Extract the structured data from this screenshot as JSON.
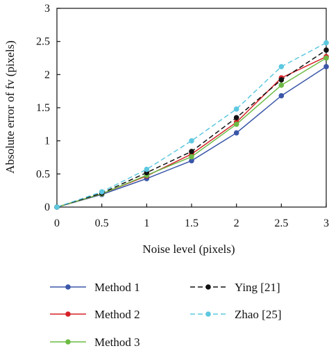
{
  "chart_data": {
    "type": "line",
    "xlabel": "Noise level (pixels)",
    "ylabel": "Absolute error of fv (pixels)",
    "xlim": [
      0,
      3
    ],
    "ylim": [
      0,
      3
    ],
    "x": [
      0,
      0.5,
      1,
      1.5,
      2,
      2.5,
      3
    ],
    "x_tick_labels": [
      "0",
      "0.5",
      "1",
      "1.5",
      "2",
      "2.5",
      "3"
    ],
    "y_tick_labels": [
      "0",
      "0.5",
      "1",
      "1.5",
      "2",
      "2.5",
      "3"
    ],
    "grid": false,
    "legend_position": "bottom",
    "series": [
      {
        "name": "Method 1",
        "color": "#3a56a8",
        "dash": "solid",
        "values": [
          0,
          0.19,
          0.43,
          0.7,
          1.12,
          1.68,
          2.12
        ]
      },
      {
        "name": "Method 2",
        "color": "#d62027",
        "dash": "solid",
        "values": [
          0,
          0.2,
          0.47,
          0.8,
          1.28,
          1.95,
          2.27
        ]
      },
      {
        "name": "Method 3",
        "color": "#6dbb45",
        "dash": "solid",
        "values": [
          0,
          0.2,
          0.48,
          0.76,
          1.25,
          1.84,
          2.25
        ]
      },
      {
        "name": "Ying [21]",
        "color": "#111111",
        "dash": "dashed",
        "values": [
          0,
          0.21,
          0.52,
          0.84,
          1.35,
          1.92,
          2.37
        ]
      },
      {
        "name": "Zhao [25]",
        "color": "#5cc8e0",
        "dash": "dashed",
        "values": [
          0,
          0.23,
          0.57,
          1.0,
          1.48,
          2.12,
          2.48
        ]
      }
    ]
  }
}
